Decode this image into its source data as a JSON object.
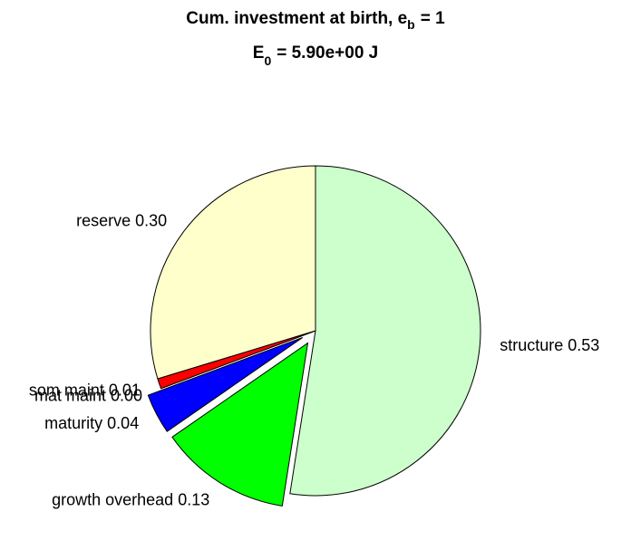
{
  "chart_data": {
    "type": "pie",
    "title": [
      "Cum. investment at birth, e",
      "b",
      "= 1"
    ],
    "subtitle": [
      "E",
      "0",
      "= 5.90e+00 J"
    ],
    "categories": [
      "structure",
      "growth overhead",
      "maturity",
      "mat maint",
      "som maint",
      "reserve"
    ],
    "values": [
      0.53,
      0.13,
      0.04,
      0,
      0.01,
      0.3
    ],
    "value_labels": [
      "0.53",
      "0.13",
      "0.04",
      "0.00",
      "0.01",
      "0.30"
    ],
    "colors": [
      "#ccffcc",
      "#00ff00",
      "#0000ff",
      "#ff00ff",
      "#ff0000",
      "#ffffcc"
    ],
    "explode": [
      false,
      true,
      true,
      false,
      false,
      false
    ]
  }
}
